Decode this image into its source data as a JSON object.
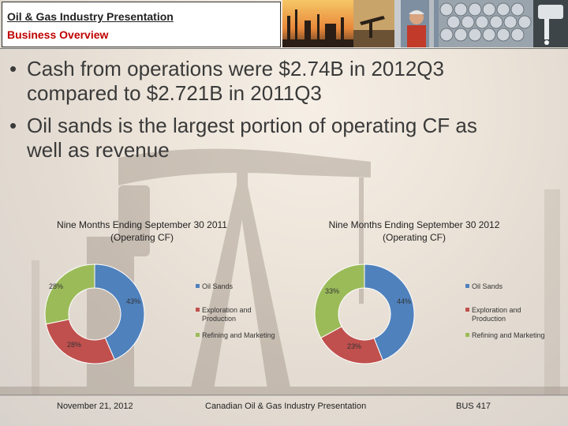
{
  "header": {
    "title_line1": "Oil & Gas Industry Presentation",
    "title_line2": "Business Overview"
  },
  "bullets": [
    {
      "line1": "Cash from operations were $2.74B in 2012Q3",
      "line2": "compared to $2.721B in 2011Q3"
    },
    {
      "line1": "Oil sands is the largest portion of operating CF as",
      "line2": "well as revenue"
    }
  ],
  "colors": {
    "oil_sands": "#4f81bd",
    "exploration": "#c0504d",
    "refining": "#9bbb59",
    "title_red": "#c00000"
  },
  "chart_data": [
    {
      "type": "pie",
      "title": "Nine Months Ending September 30 2011 (Operating CF)",
      "title_line1": "Nine Months Ending September 30 2011",
      "title_line2": "(Operating CF)",
      "categories": [
        "Oil Sands",
        "Exploration and Production",
        "Refining and Marketing"
      ],
      "legend_lines": [
        [
          "Oil Sands"
        ],
        [
          "Exploration and",
          "Production"
        ],
        [
          "Refining and Marketing"
        ]
      ],
      "values": [
        43,
        28,
        28
      ],
      "labels": [
        "43%",
        "28%",
        "28%"
      ],
      "legend_position": "right"
    },
    {
      "type": "pie",
      "title": "Nine Months Ending September 30 2012 (Operating CF)",
      "title_line1": "Nine Months Ending September 30 2012",
      "title_line2": "(Operating CF)",
      "categories": [
        "Oil Sands",
        "Exploration and Production",
        "Refining and Marketing"
      ],
      "legend_lines": [
        [
          "Oil Sands"
        ],
        [
          "Exploration and",
          "Production"
        ],
        [
          "Refining and Marketing"
        ]
      ],
      "values": [
        44,
        23,
        33
      ],
      "labels": [
        "44%",
        "23%",
        "33%"
      ],
      "legend_position": "right"
    }
  ],
  "footer": {
    "date": "November 21, 2012",
    "center": "Canadian Oil & Gas Industry Presentation",
    "course": "BUS 417"
  }
}
